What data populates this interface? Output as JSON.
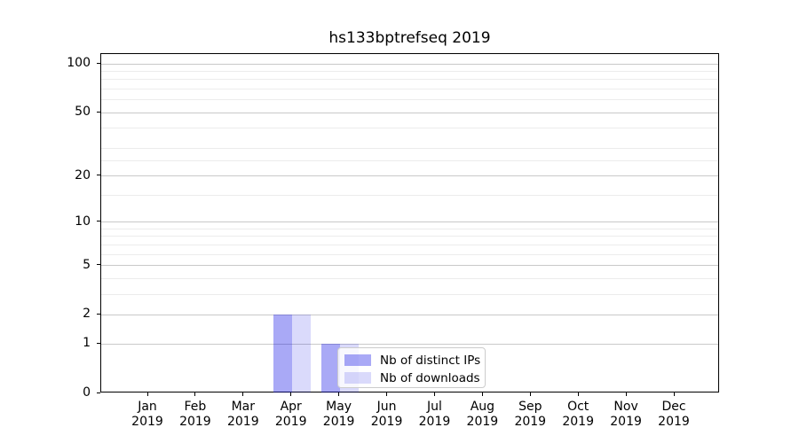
{
  "chart_data": {
    "type": "bar",
    "title": "hs133bptrefseq 2019",
    "year": "2019",
    "categories": [
      "Jan",
      "Feb",
      "Mar",
      "Apr",
      "May",
      "Jun",
      "Jul",
      "Aug",
      "Sep",
      "Oct",
      "Nov",
      "Dec"
    ],
    "series": [
      {
        "name": "Nb of distinct IPs",
        "key": "distinct-ips",
        "values": [
          0,
          0,
          0,
          2,
          1,
          0,
          0,
          0,
          0,
          0,
          0,
          0
        ],
        "fill_hex": "#a9a9f6",
        "fill_rgba": "rgba(10,10,230,0.35)"
      },
      {
        "name": "Nb of downloads",
        "key": "downloads",
        "values": [
          0,
          0,
          0,
          2,
          1,
          0,
          0,
          0,
          0,
          0,
          0,
          0
        ],
        "fill_hex": "#dadaf9",
        "fill_rgba": "rgba(10,10,230,0.15)"
      }
    ],
    "yscale": "log1p",
    "ylim": [
      0,
      115
    ],
    "y_ticks": [
      0,
      1,
      2,
      5,
      10,
      20,
      50,
      100
    ],
    "y_minor_ticks": [
      3,
      4,
      6,
      7,
      8,
      9,
      15,
      25,
      30,
      40,
      60,
      70,
      80,
      90
    ],
    "xlabel": "",
    "ylabel": "",
    "grid": "horizontal",
    "legend_position": "lower center"
  },
  "colors": {
    "background": "#ffffff",
    "spine": "#000000",
    "grid_major": "#c9c9c9",
    "grid_minor": "#ececec",
    "text": "#000000",
    "legend_border": "#cccccc"
  }
}
